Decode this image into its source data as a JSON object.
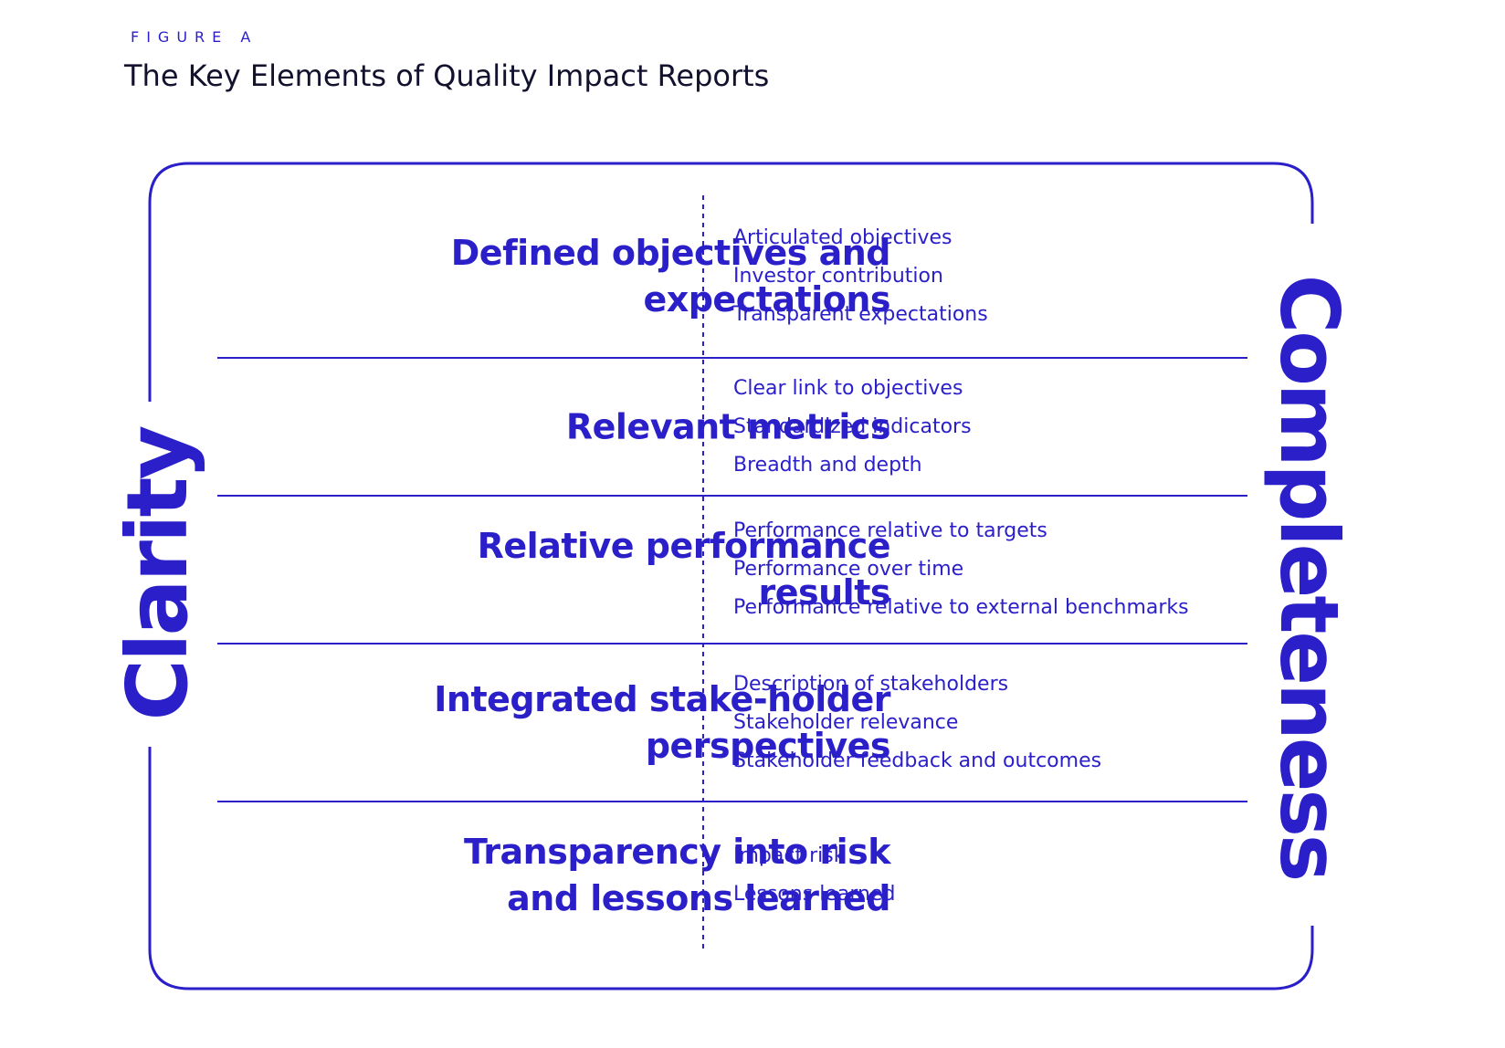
{
  "figure": {
    "label": "FIGURE A",
    "title": "The Key Elements of Quality Impact Reports"
  },
  "side_labels": {
    "left": "Clarity",
    "right": "Completeness"
  },
  "rows": [
    {
      "heading": "Defined objectives and expectations",
      "items": [
        "Articulated objectives",
        "Investor contribution",
        "Transparent expectations"
      ]
    },
    {
      "heading": "Relevant metrics",
      "items": [
        "Clear link to objectives",
        "Standardized indicators",
        "Breadth and depth"
      ]
    },
    {
      "heading": "Relative performance results",
      "items": [
        "Performance relative to targets",
        "Performance over time",
        "Performance relative to external benchmarks"
      ]
    },
    {
      "heading": "Integrated stake-holder perspectives",
      "items": [
        "Description of stakeholders",
        "Stakeholder relevance",
        "Stakeholder feedback and outcomes"
      ]
    },
    {
      "heading": "Transparency into risk and lessons learned",
      "items": [
        "Impact risk",
        "Lessons learned"
      ]
    }
  ],
  "colors": {
    "accent": "#2a1fc8",
    "title": "#12112e",
    "background": "#ffffff"
  }
}
